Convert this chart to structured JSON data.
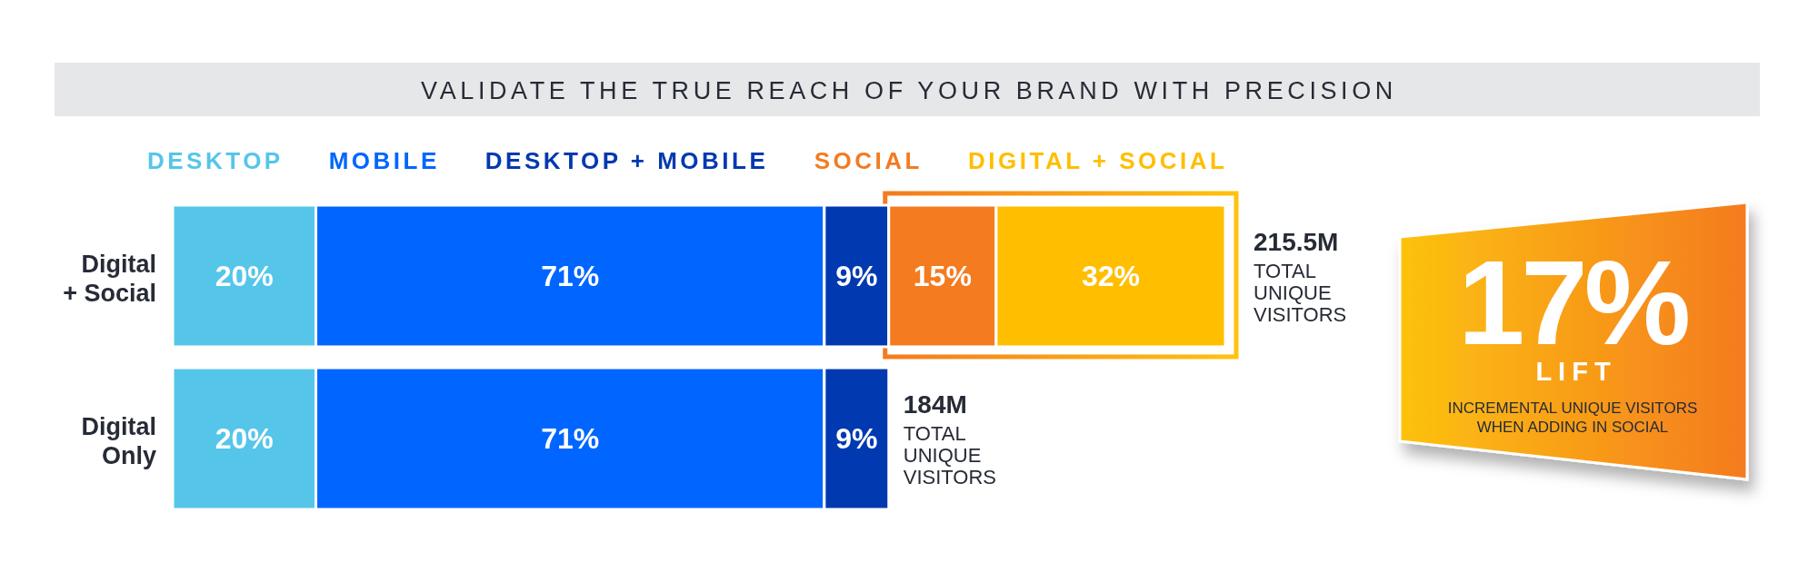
{
  "chart_data": [
    {
      "type": "bar",
      "orientation": "horizontal",
      "stacked": true,
      "title": "VALIDATE THE TRUE REACH OF YOUR BRAND WITH PRECISION",
      "categories": [
        "Digital + Social",
        "Digital Only"
      ],
      "series": [
        {
          "name": "DESKTOP",
          "color": "#55c6e9",
          "values": [
            20,
            20
          ],
          "value_labels": [
            "20%",
            "20%"
          ]
        },
        {
          "name": "MOBILE",
          "color": "#0066ff",
          "values": [
            71,
            71
          ],
          "value_labels": [
            "71%",
            "71%"
          ]
        },
        {
          "name": "DESKTOP + MOBILE",
          "color": "#0039b0",
          "values": [
            9,
            9
          ],
          "value_labels": [
            "9%",
            "9%"
          ]
        },
        {
          "name": "SOCIAL",
          "color": "#f47b20",
          "values": [
            15,
            null
          ],
          "value_labels": [
            "15%",
            null
          ]
        },
        {
          "name": "DIGITAL + SOCIAL",
          "color": "#ffbe00",
          "values": [
            32,
            null
          ],
          "value_labels": [
            "32%",
            null
          ]
        }
      ],
      "annotations": [
        "215.5M TOTAL UNIQUE VISITORS",
        "184M TOTAL UNIQUE VISITORS"
      ],
      "legend": "top"
    },
    {
      "type": "other",
      "title": "17%",
      "subtitle": "LIFT",
      "annotations": [
        "INCREMENTAL UNIQUE VISITORS WHEN ADDING IN SOCIAL"
      ]
    }
  ]
}
